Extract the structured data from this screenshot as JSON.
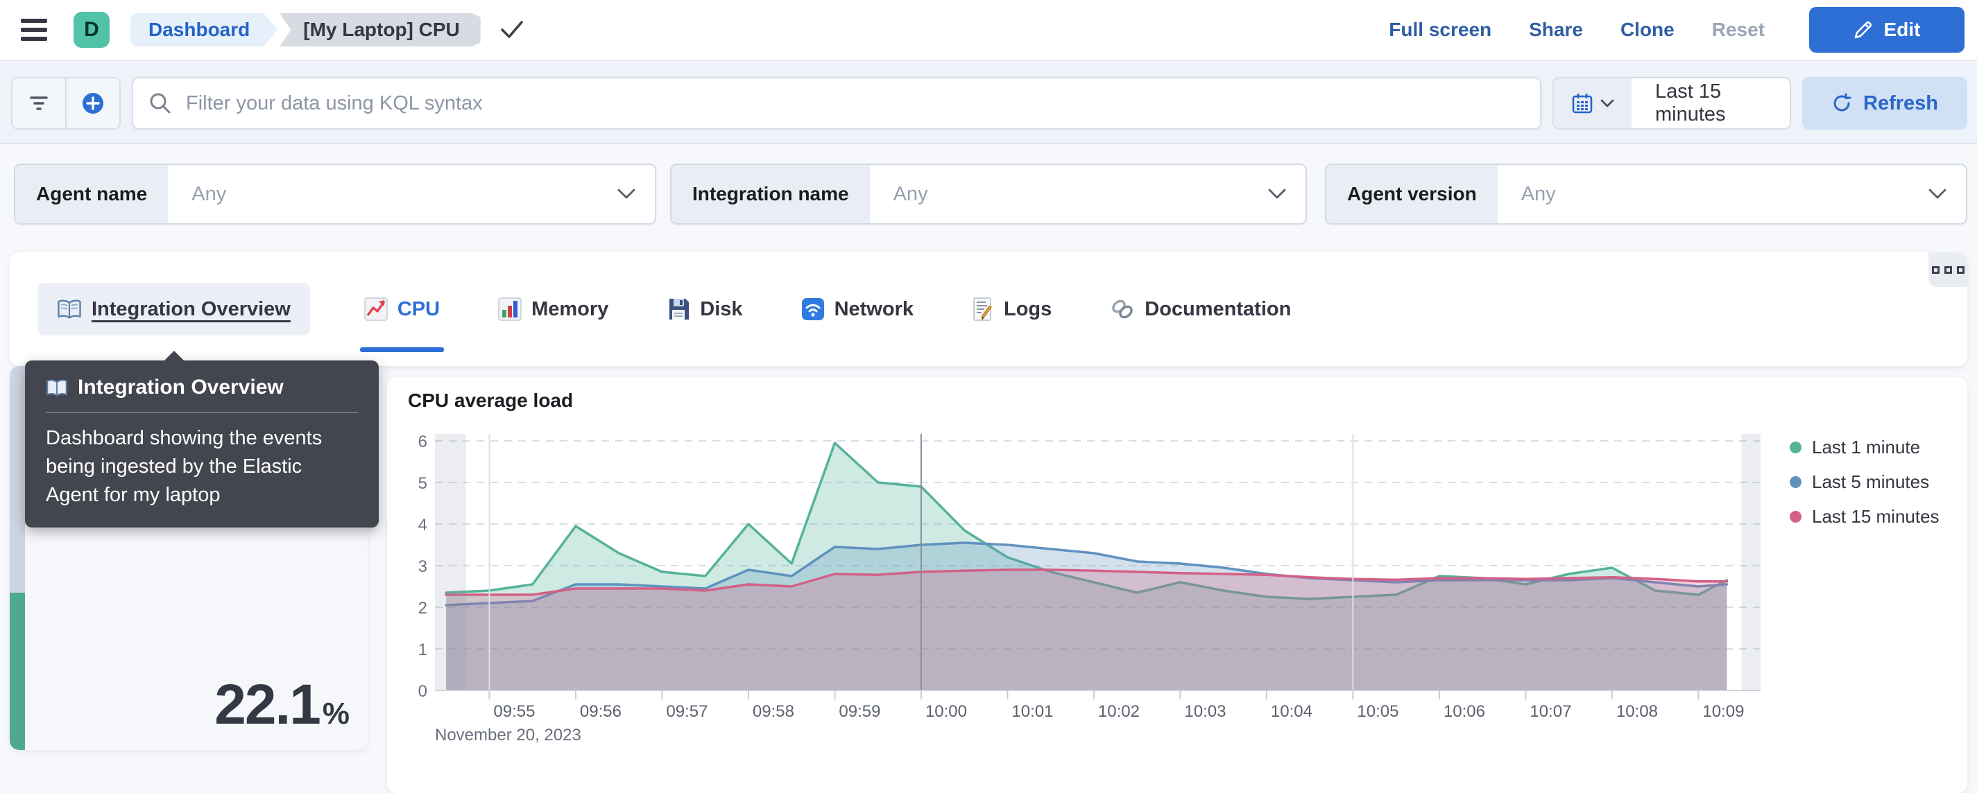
{
  "header": {
    "space_initial": "D",
    "breadcrumb_root": "Dashboard",
    "breadcrumb_current": "[My Laptop] CPU",
    "actions": [
      "Full screen",
      "Share",
      "Clone",
      "Reset"
    ],
    "edit_label": "Edit"
  },
  "query_bar": {
    "placeholder": "Filter your data using KQL syntax",
    "time_range": "Last 15 minutes",
    "refresh_label": "Refresh"
  },
  "controls": [
    {
      "label": "Agent name",
      "value": "Any"
    },
    {
      "label": "Integration name",
      "value": "Any"
    },
    {
      "label": "Agent version",
      "value": "Any"
    }
  ],
  "tabs": [
    {
      "icon": "book-icon",
      "label": "Integration Overview",
      "state": "hovered"
    },
    {
      "icon": "chart-increasing-icon",
      "label": "CPU",
      "state": "active"
    },
    {
      "icon": "bar-chart-icon",
      "label": "Memory",
      "state": "normal"
    },
    {
      "icon": "floppy-disk-icon",
      "label": "Disk",
      "state": "normal"
    },
    {
      "icon": "wifi-icon",
      "label": "Network",
      "state": "normal"
    },
    {
      "icon": "memo-icon",
      "label": "Logs",
      "state": "normal"
    },
    {
      "icon": "link-icon",
      "label": "Documentation",
      "state": "normal"
    }
  ],
  "tooltip": {
    "title": "Integration Overview",
    "body": "Dashboard showing the events being ingested by the Elastic Agent for my laptop"
  },
  "metric_panel": {
    "value": "22.1",
    "unit": "%",
    "bar_color": "#4fa98e",
    "bar_fill_ratio": 0.41
  },
  "chart_data": {
    "type": "area",
    "title": "CPU average load",
    "date_label": "November 20, 2023",
    "x_tick_labels": [
      "09:55",
      "09:56",
      "09:57",
      "09:58",
      "09:59",
      "10:00",
      "10:01",
      "10:02",
      "10:03",
      "10:04",
      "10:05",
      "10:06",
      "10:07",
      "10:08",
      "10:09"
    ],
    "x": [
      -0.5,
      0,
      0.5,
      1,
      1.5,
      2,
      2.5,
      3,
      3.5,
      4,
      4.5,
      5,
      5.5,
      6,
      6.5,
      7,
      7.5,
      8,
      8.5,
      9,
      9.5,
      10,
      10.5,
      11,
      11.5,
      12,
      12.5,
      13,
      13.5,
      14,
      14.33
    ],
    "series": [
      {
        "name": "Last 1 minute",
        "color": "#54b399",
        "values": [
          2.35,
          2.4,
          2.55,
          3.95,
          3.3,
          2.85,
          2.75,
          4.0,
          3.05,
          5.95,
          5.0,
          4.9,
          3.85,
          3.2,
          2.85,
          2.6,
          2.35,
          2.6,
          2.4,
          2.25,
          2.2,
          2.25,
          2.3,
          2.75,
          2.7,
          2.55,
          2.8,
          2.95,
          2.4,
          2.3,
          2.65
        ]
      },
      {
        "name": "Last 5 minutes",
        "color": "#6092c0",
        "values": [
          2.05,
          2.1,
          2.15,
          2.55,
          2.55,
          2.5,
          2.45,
          2.9,
          2.75,
          3.45,
          3.4,
          3.5,
          3.55,
          3.5,
          3.4,
          3.3,
          3.1,
          3.05,
          2.95,
          2.8,
          2.7,
          2.65,
          2.6,
          2.65,
          2.65,
          2.65,
          2.65,
          2.7,
          2.6,
          2.5,
          2.55
        ]
      },
      {
        "name": "Last 15 minutes",
        "color": "#d36086",
        "values": [
          2.3,
          2.3,
          2.3,
          2.45,
          2.45,
          2.45,
          2.4,
          2.55,
          2.5,
          2.8,
          2.78,
          2.85,
          2.88,
          2.9,
          2.9,
          2.88,
          2.85,
          2.82,
          2.8,
          2.78,
          2.72,
          2.68,
          2.66,
          2.7,
          2.7,
          2.68,
          2.7,
          2.72,
          2.68,
          2.62,
          2.62
        ]
      }
    ],
    "ylim": [
      0,
      6
    ],
    "y_ticks": [
      0,
      1,
      2,
      3,
      4,
      5,
      6
    ],
    "xlim": [
      -0.63,
      14.72
    ],
    "partial_bucket_left_end": -0.27,
    "partial_bucket_right_start": 14.5,
    "v_gridlines": [
      {
        "t": 0,
        "emphasis": false
      },
      {
        "t": 5,
        "emphasis": true
      },
      {
        "t": 10,
        "emphasis": false
      }
    ],
    "grid": "dashed-horizontal",
    "legend_position": "right",
    "fill_opacity": 0.28
  },
  "icons": {
    "hamburger": "menu",
    "check": "checkmark",
    "pencil": "edit",
    "magnifier": "search",
    "funnel": "filter",
    "plus": "add-filter",
    "calendar": "date-picker",
    "refresh": "refresh",
    "chevron": "dropdown",
    "squares": "panel-options"
  }
}
